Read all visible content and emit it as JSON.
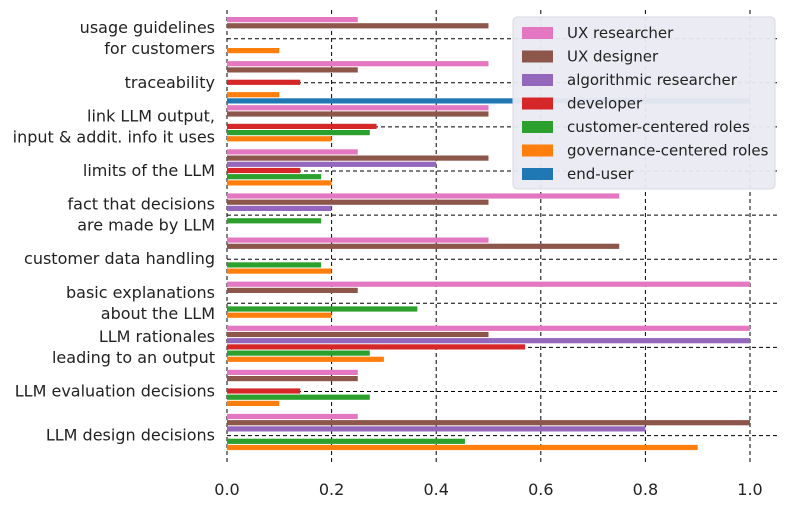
{
  "chart_data": {
    "type": "bar",
    "orientation": "horizontal",
    "title": "",
    "xlabel": "",
    "ylabel": "",
    "xlim": [
      0.0,
      1.0
    ],
    "xticks": [
      0.0,
      0.2,
      0.4,
      0.6,
      0.8,
      1.0
    ],
    "xtick_labels": [
      "0.0",
      "0.2",
      "0.4",
      "0.6",
      "0.8",
      "1.0"
    ],
    "grid": true,
    "legend_position": "top-right",
    "categories": [
      [
        "usage guidelines",
        "for customers"
      ],
      [
        "traceability"
      ],
      [
        "link LLM output,",
        "input & addit. info it uses"
      ],
      [
        "limits of the LLM"
      ],
      [
        "fact that decisions",
        "are made by LLM"
      ],
      [
        "customer data handling"
      ],
      [
        "basic explanations",
        "about the LLM"
      ],
      [
        "LLM rationales",
        "leading to an output"
      ],
      [
        "LLM evaluation decisions"
      ],
      [
        "LLM design decisions"
      ]
    ],
    "series": [
      {
        "name": "UX researcher",
        "color": "#e377c2",
        "values": [
          0.25,
          0.5,
          0.5,
          0.25,
          0.75,
          0.5,
          1.0,
          1.0,
          0.25,
          0.25
        ]
      },
      {
        "name": "UX designer",
        "color": "#8c564b",
        "values": [
          0.5,
          0.25,
          0.5,
          0.5,
          0.5,
          0.75,
          0.25,
          0.5,
          0.25,
          1.0
        ]
      },
      {
        "name": "algorithmic researcher",
        "color": "#9467bd",
        "values": [
          0,
          0,
          0,
          0.4,
          0.2,
          0,
          0,
          1.0,
          0,
          0.8
        ]
      },
      {
        "name": "developer",
        "color": "#d62728",
        "values": [
          0,
          0.14,
          0.286,
          0.14,
          0,
          0,
          0,
          0.57,
          0.14,
          0
        ]
      },
      {
        "name": "customer-centered roles",
        "color": "#2ca02c",
        "values": [
          0,
          0,
          0.273,
          0.18,
          0.18,
          0.18,
          0.364,
          0.273,
          0.273,
          0.455
        ]
      },
      {
        "name": "governance-centered roles",
        "color": "#ff7f0e",
        "values": [
          0.1,
          0.1,
          0.2,
          0.2,
          0,
          0.2,
          0.2,
          0.3,
          0.1,
          0.9
        ]
      },
      {
        "name": "end-user",
        "color": "#1f77b4",
        "values": [
          0,
          1.0,
          0,
          0,
          0,
          0,
          0,
          0,
          0,
          0
        ]
      }
    ]
  }
}
